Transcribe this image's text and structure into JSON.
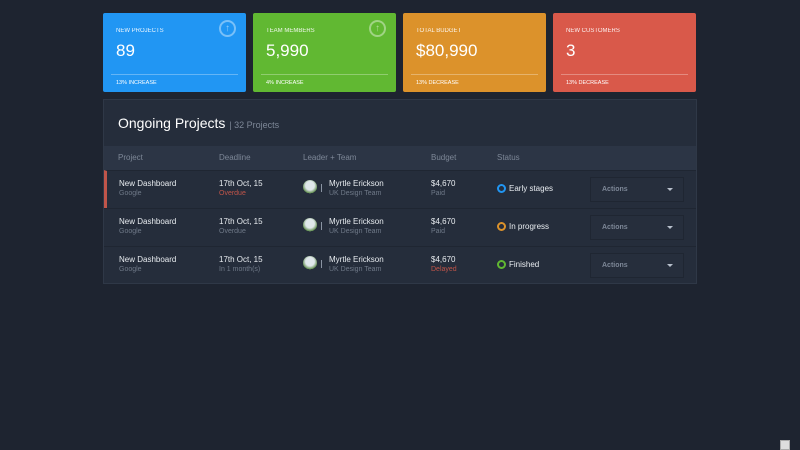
{
  "cards": [
    {
      "label": "New Projects",
      "value": "89",
      "footer": "13% INCREASE",
      "color": "#2196f3",
      "icon": "arrow-up-circle-icon"
    },
    {
      "label": "Team Members",
      "value": "5,990",
      "footer": "4% INCREASE",
      "color": "#61b832",
      "icon": "arrow-up-circle-icon"
    },
    {
      "label": "Total Budget",
      "value": "$80,990",
      "footer": "13% DECREASE",
      "color": "#dc922b"
    },
    {
      "label": "New Customers",
      "value": "3",
      "footer": "13% DECREASE",
      "color": "#d9594a"
    }
  ],
  "panel": {
    "title": "Ongoing Projects",
    "subtitle": "| 32 Projects",
    "headers": [
      "Project",
      "Deadline",
      "Leader + Team",
      "Budget",
      "Status"
    ],
    "rows": [
      {
        "project": "New Dashboard",
        "client": "Google",
        "deadline": "17th Oct, 15",
        "deadline_note": "Overdue",
        "leader": "Myrtle Erickson",
        "team": "UK Design Team",
        "budget": "$4,670",
        "budget_note": "Paid",
        "status": "Early stages",
        "status_color": "#2196f3",
        "action": "Actions"
      },
      {
        "project": "New Dashboard",
        "client": "Google",
        "deadline": "17th Oct, 15",
        "deadline_note": "Overdue",
        "leader": "Myrtle Erickson",
        "team": "UK Design Team",
        "budget": "$4,670",
        "budget_note": "Paid",
        "status": "In progress",
        "status_color": "#dc922b",
        "action": "Actions"
      },
      {
        "project": "New Dashboard",
        "client": "Google",
        "deadline": "17th Oct, 15",
        "deadline_note": "In 1 month(s)",
        "leader": "Myrtle Erickson",
        "team": "UK Design Team",
        "budget": "$4,670",
        "budget_note": "Delayed",
        "status": "Finished",
        "status_color": "#61b832",
        "action": "Actions"
      }
    ]
  }
}
